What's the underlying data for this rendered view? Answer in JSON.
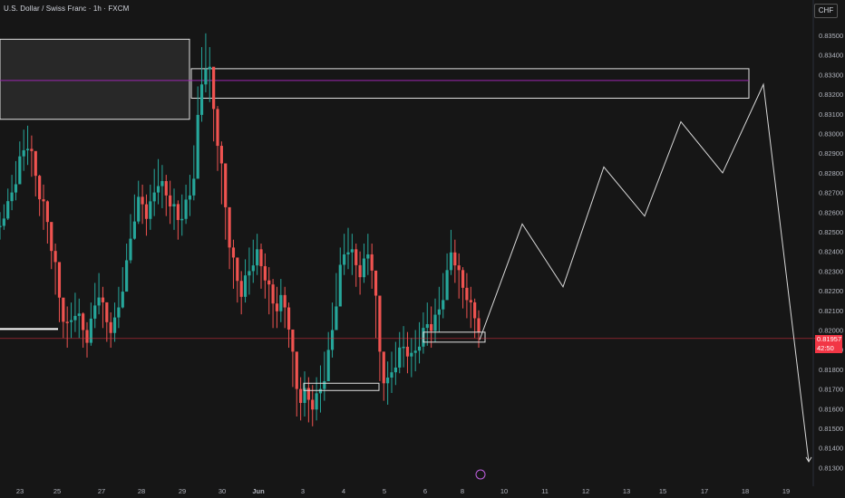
{
  "header": {
    "title": "U.S. Dollar / Swiss Franc · 1h · FXCM",
    "currency": "CHF"
  },
  "last_price": {
    "value": "0.81957",
    "countdown": "42:50"
  },
  "colors": {
    "background": "#161616",
    "up": "#26a69a",
    "down": "#ef5350",
    "price_line": "#f23645",
    "zone_line": "#9c27b0",
    "box_border": "#e0e0e0",
    "projection": "#d9d9d9"
  },
  "chart_data": {
    "type": "candlestick",
    "title": "U.S. Dollar / Swiss Franc · 1h · FXCM",
    "xlabel": "",
    "ylabel": "",
    "ylim": [
      0.8126,
      0.8358
    ],
    "y_ticks": [
      "0.83500",
      "0.83400",
      "0.83300",
      "0.83200",
      "0.83100",
      "0.83000",
      "0.82900",
      "0.82800",
      "0.82700",
      "0.82600",
      "0.82500",
      "0.82400",
      "0.82300",
      "0.82200",
      "0.82100",
      "0.82000",
      "0.81900",
      "0.81800",
      "0.81700",
      "0.81600",
      "0.81500",
      "0.81400",
      "0.81300"
    ],
    "x_ticks": [
      "23",
      "25",
      "27",
      "28",
      "29",
      "30",
      "Jun",
      "3",
      "4",
      "5",
      "6",
      "8",
      "10",
      "11",
      "12",
      "13",
      "15",
      "17",
      "18",
      "19"
    ],
    "grid": false,
    "price_path": [
      [
        0.8256,
        0.825
      ],
      [
        0.826,
        0.8255
      ],
      [
        0.8268,
        0.826
      ],
      [
        0.8275,
        0.8265
      ],
      [
        0.8282,
        0.827
      ],
      [
        0.8292,
        0.828
      ],
      [
        0.8298,
        0.8285
      ],
      [
        0.83,
        0.8288
      ],
      [
        0.8295,
        0.8282
      ],
      [
        0.8285,
        0.8272
      ],
      [
        0.8275,
        0.8262
      ],
      [
        0.827,
        0.8255
      ],
      [
        0.8262,
        0.8248
      ],
      [
        0.825,
        0.8235
      ],
      [
        0.824,
        0.8222
      ],
      [
        0.8225,
        0.8208
      ],
      [
        0.8212,
        0.82
      ],
      [
        0.8208,
        0.8195
      ],
      [
        0.821,
        0.82
      ],
      [
        0.8215,
        0.8203
      ],
      [
        0.8212,
        0.82
      ],
      [
        0.8205,
        0.8195
      ],
      [
        0.82,
        0.819
      ],
      [
        0.821,
        0.8196
      ],
      [
        0.822,
        0.8205
      ],
      [
        0.8225,
        0.8212
      ],
      [
        0.8218,
        0.8205
      ],
      [
        0.821,
        0.8198
      ],
      [
        0.8205,
        0.8195
      ],
      [
        0.821,
        0.8198
      ],
      [
        0.8218,
        0.8205
      ],
      [
        0.8228,
        0.8215
      ],
      [
        0.824,
        0.8225
      ],
      [
        0.8255,
        0.8238
      ],
      [
        0.8265,
        0.825
      ],
      [
        0.8272,
        0.8258
      ],
      [
        0.827,
        0.8258
      ],
      [
        0.8265,
        0.8252
      ],
      [
        0.827,
        0.8255
      ],
      [
        0.8278,
        0.8262
      ],
      [
        0.8283,
        0.8268
      ],
      [
        0.828,
        0.8266
      ],
      [
        0.8275,
        0.8262
      ],
      [
        0.8272,
        0.8258
      ],
      [
        0.8268,
        0.8255
      ],
      [
        0.8262,
        0.825
      ],
      [
        0.8265,
        0.8252
      ],
      [
        0.827,
        0.8258
      ],
      [
        0.8275,
        0.8262
      ],
      [
        0.829,
        0.827
      ],
      [
        0.832,
        0.8285
      ],
      [
        0.834,
        0.831
      ],
      [
        0.8347,
        0.8325
      ],
      [
        0.834,
        0.832
      ],
      [
        0.8325,
        0.83
      ],
      [
        0.831,
        0.8285
      ],
      [
        0.8292,
        0.8268
      ],
      [
        0.8275,
        0.825
      ],
      [
        0.8255,
        0.8235
      ],
      [
        0.8242,
        0.8225
      ],
      [
        0.8232,
        0.8218
      ],
      [
        0.8226,
        0.8212
      ],
      [
        0.8232,
        0.8218
      ],
      [
        0.8238,
        0.8222
      ],
      [
        0.8242,
        0.8228
      ],
      [
        0.8245,
        0.8232
      ],
      [
        0.824,
        0.8225
      ],
      [
        0.8235,
        0.822
      ],
      [
        0.8228,
        0.8212
      ],
      [
        0.8222,
        0.8205
      ],
      [
        0.8218,
        0.8205
      ],
      [
        0.8222,
        0.8208
      ],
      [
        0.8218,
        0.8205
      ],
      [
        0.821,
        0.8195
      ],
      [
        0.8195,
        0.8175
      ],
      [
        0.818,
        0.816
      ],
      [
        0.8172,
        0.8158
      ],
      [
        0.8175,
        0.816
      ],
      [
        0.8172,
        0.8157
      ],
      [
        0.8168,
        0.8155
      ],
      [
        0.8172,
        0.8158
      ],
      [
        0.8178,
        0.8162
      ],
      [
        0.8185,
        0.8168
      ],
      [
        0.8195,
        0.8178
      ],
      [
        0.821,
        0.819
      ],
      [
        0.8225,
        0.8205
      ],
      [
        0.8238,
        0.8222
      ],
      [
        0.8245,
        0.8232
      ],
      [
        0.8248,
        0.8235
      ],
      [
        0.8245,
        0.8232
      ],
      [
        0.824,
        0.8226
      ],
      [
        0.8236,
        0.8222
      ],
      [
        0.824,
        0.8228
      ],
      [
        0.8245,
        0.8232
      ],
      [
        0.824,
        0.8225
      ],
      [
        0.8225,
        0.82
      ],
      [
        0.82,
        0.8178
      ],
      [
        0.8182,
        0.8168
      ],
      [
        0.818,
        0.8166
      ],
      [
        0.8185,
        0.8172
      ],
      [
        0.819,
        0.8176
      ],
      [
        0.8195,
        0.8182
      ],
      [
        0.8198,
        0.8185
      ],
      [
        0.8195,
        0.8182
      ],
      [
        0.8192,
        0.818
      ],
      [
        0.8196,
        0.8183
      ],
      [
        0.82,
        0.8187
      ],
      [
        0.8205,
        0.8192
      ],
      [
        0.821,
        0.8196
      ],
      [
        0.8208,
        0.8195
      ],
      [
        0.8212,
        0.8198
      ],
      [
        0.8218,
        0.8203
      ],
      [
        0.8225,
        0.821
      ],
      [
        0.8235,
        0.822
      ],
      [
        0.8247,
        0.8232
      ],
      [
        0.8242,
        0.8228
      ],
      [
        0.8235,
        0.822
      ],
      [
        0.8228,
        0.8215
      ],
      [
        0.8225,
        0.821
      ],
      [
        0.8218,
        0.8205
      ],
      [
        0.8212,
        0.82
      ],
      [
        0.8206,
        0.8195
      ]
    ],
    "zones": {
      "upper_left_box": [
        0.8328,
        0.8348
      ],
      "upper_right_box": [
        0.8318,
        0.8333
      ],
      "zone_mid_level": 0.8327,
      "support_line": 0.82005,
      "low_box": [
        0.817,
        0.8172
      ],
      "demand_box": [
        0.8192,
        0.8198
      ]
    },
    "projection": [
      [
        "8",
        0.8195
      ],
      [
        "10",
        0.8254
      ],
      [
        "11",
        0.8222
      ],
      [
        "12",
        0.8283
      ],
      [
        "13",
        0.8258
      ],
      [
        "15",
        0.8306
      ],
      [
        "17",
        0.828
      ],
      [
        "18",
        0.8325
      ],
      [
        "19",
        0.8133
      ]
    ]
  }
}
